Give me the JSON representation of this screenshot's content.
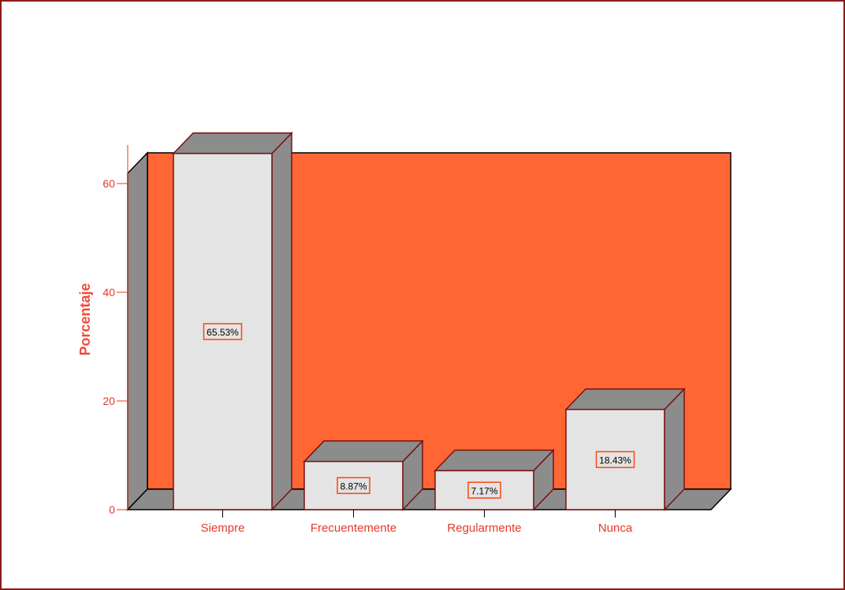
{
  "chart_data": {
    "type": "bar",
    "style": "3d",
    "categories": [
      "Siempre",
      "Frecuentemente",
      "Regularmente",
      "Nunca"
    ],
    "values": [
      65.53,
      8.87,
      7.17,
      18.43
    ],
    "data_labels": [
      "65.53%",
      "8.87%",
      "7.17%",
      "18.43%"
    ],
    "ylabel": "Porcentaje",
    "xlabel": "",
    "ylim": [
      0,
      70
    ],
    "yticks": [
      0,
      20,
      40,
      60
    ],
    "ytick_labels": [
      "0",
      "20",
      "40",
      "60"
    ],
    "grid": false,
    "legend": "none"
  },
  "colors": {
    "back_wall": "#ff6633",
    "side_wall": "#8c8c8c",
    "bar_front": "#e4e4e4",
    "bar_top_side": "#8c8c8c",
    "outline": "#7a1010",
    "text": "#e8382a",
    "frame": "#8b1a1a"
  }
}
